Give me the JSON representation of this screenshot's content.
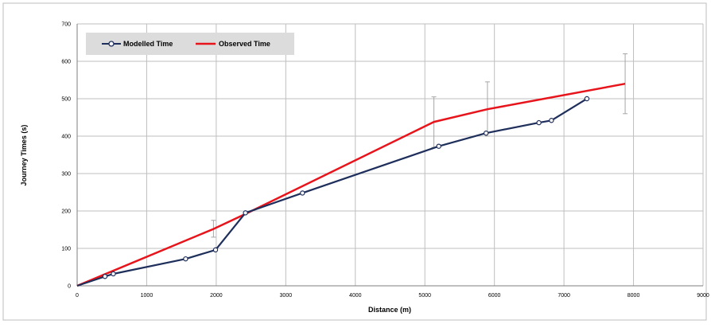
{
  "chart_data": {
    "type": "line",
    "xlabel": "Distance (m)",
    "ylabel": "Journey Times (s)",
    "xlim": [
      0,
      9000
    ],
    "ylim": [
      0,
      700
    ],
    "x_ticks": [
      0,
      1000,
      2000,
      3000,
      4000,
      5000,
      6000,
      7000,
      8000,
      9000
    ],
    "y_ticks": [
      0,
      100,
      200,
      300,
      400,
      500,
      600,
      700
    ],
    "grid": true,
    "legend_position": "top-left",
    "series": [
      {
        "name": "Modelled Time",
        "color": "#1f2f5c",
        "marker": "circle",
        "points": [
          [
            0,
            0
          ],
          [
            400,
            25
          ],
          [
            520,
            32
          ],
          [
            1560,
            72
          ],
          [
            1990,
            96
          ],
          [
            2420,
            195
          ],
          [
            3240,
            248
          ],
          [
            5200,
            373
          ],
          [
            5880,
            408
          ],
          [
            6640,
            436
          ],
          [
            6820,
            442
          ],
          [
            7330,
            500
          ]
        ]
      },
      {
        "name": "Observed Time",
        "color": "#e8141b",
        "marker": "none",
        "points": [
          [
            0,
            0
          ],
          [
            1960,
            152
          ],
          [
            2420,
            192
          ],
          [
            5130,
            438
          ],
          [
            5900,
            472
          ],
          [
            7880,
            540
          ]
        ],
        "error_bars": [
          {
            "x": 1960,
            "low": 130,
            "high": 175
          },
          {
            "x": 5130,
            "low": 370,
            "high": 505
          },
          {
            "x": 5900,
            "low": 400,
            "high": 545
          },
          {
            "x": 7880,
            "low": 460,
            "high": 620
          }
        ]
      }
    ]
  }
}
